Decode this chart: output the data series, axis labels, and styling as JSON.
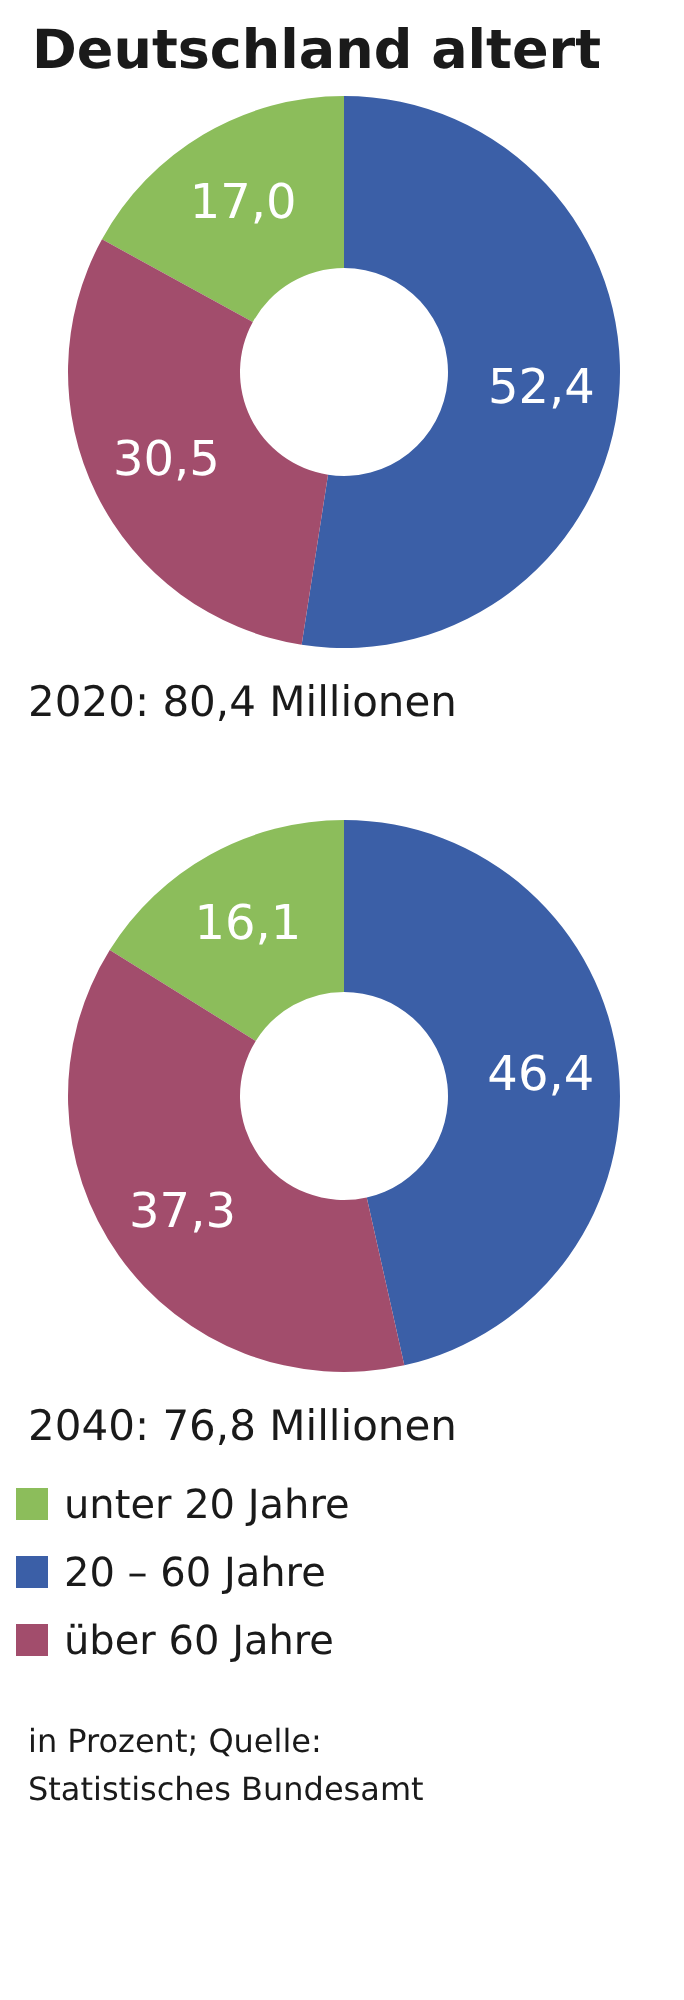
{
  "chart_data": [
    {
      "type": "donut",
      "title": "Deutschland altert",
      "xlabel": "2020: 80,4 Millionen",
      "categories": [
        null,
        null,
        null
      ],
      "values": [
        17.0,
        52.4,
        30.5
      ],
      "value_labels": [
        "17,0",
        "52,4",
        "30,5"
      ],
      "colors": [
        "#8cbd5b",
        "#3b5fa7",
        "#a24d6c"
      ],
      "legend": false
    },
    {
      "type": "donut",
      "xlabel": "2040: 76,8 Millionen",
      "categories": [
        "unter 20 Jahre",
        "20 – 60 Jahre",
        "über 60 Jahre"
      ],
      "values": [
        16.1,
        46.4,
        37.3
      ],
      "value_labels": [
        "16,1",
        "46,4",
        "37,3"
      ],
      "colors": [
        "#8cbd5b",
        "#3b5fa7",
        "#a24d6c"
      ],
      "legend": "bottom",
      "annotations": [
        "in Prozent; Quelle: Statistisches Bundesamt"
      ]
    }
  ]
}
